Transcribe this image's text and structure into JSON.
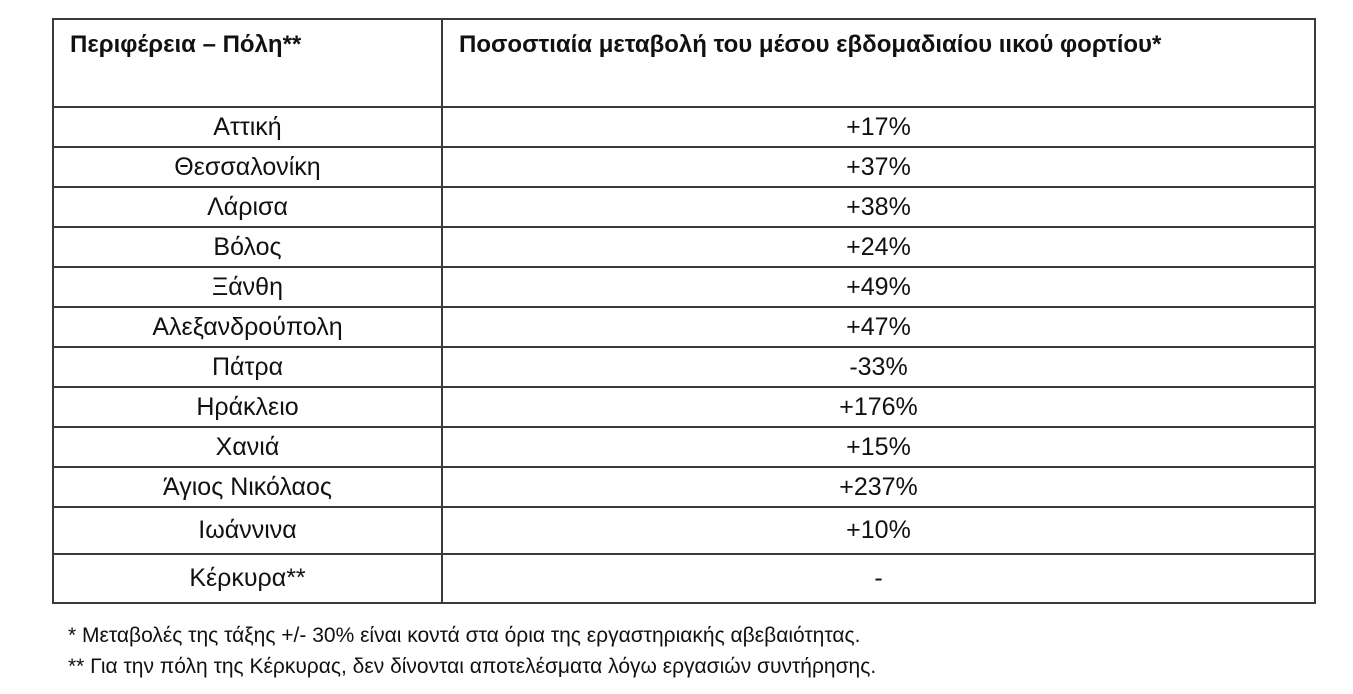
{
  "table": {
    "headers": [
      "Περιφέρεια – Πόλη**",
      "Ποσοστιαία μεταβολή του μέσου εβδομαδιαίου ιικού φορτίου*"
    ],
    "rows": [
      {
        "city": "Αττική",
        "change": "+17%"
      },
      {
        "city": "Θεσσαλονίκη",
        "change": "+37%"
      },
      {
        "city": "Λάρισα",
        "change": "+38%"
      },
      {
        "city": "Βόλος",
        "change": "+24%"
      },
      {
        "city": "Ξάνθη",
        "change": "+49%"
      },
      {
        "city": "Αλεξανδρούπολη",
        "change": "+47%"
      },
      {
        "city": "Πάτρα",
        "change": "-33%"
      },
      {
        "city": "Ηράκλειο",
        "change": "+176%"
      },
      {
        "city": "Χανιά",
        "change": "+15%"
      },
      {
        "city": "Άγιος Νικόλαος",
        "change": "+237%"
      },
      {
        "city": "Ιωάννινα",
        "change": "+10%"
      },
      {
        "city": "Κέρκυρα**",
        "change": "-"
      }
    ]
  },
  "footnotes": [
    "* Μεταβολές της τάξης +/- 30% είναι κοντά στα όρια της εργαστηριακής αβεβαιότητας.",
    "** Για την πόλη της Κέρκυρας, δεν δίνονται αποτελέσματα λόγω εργασιών συντήρησης."
  ]
}
